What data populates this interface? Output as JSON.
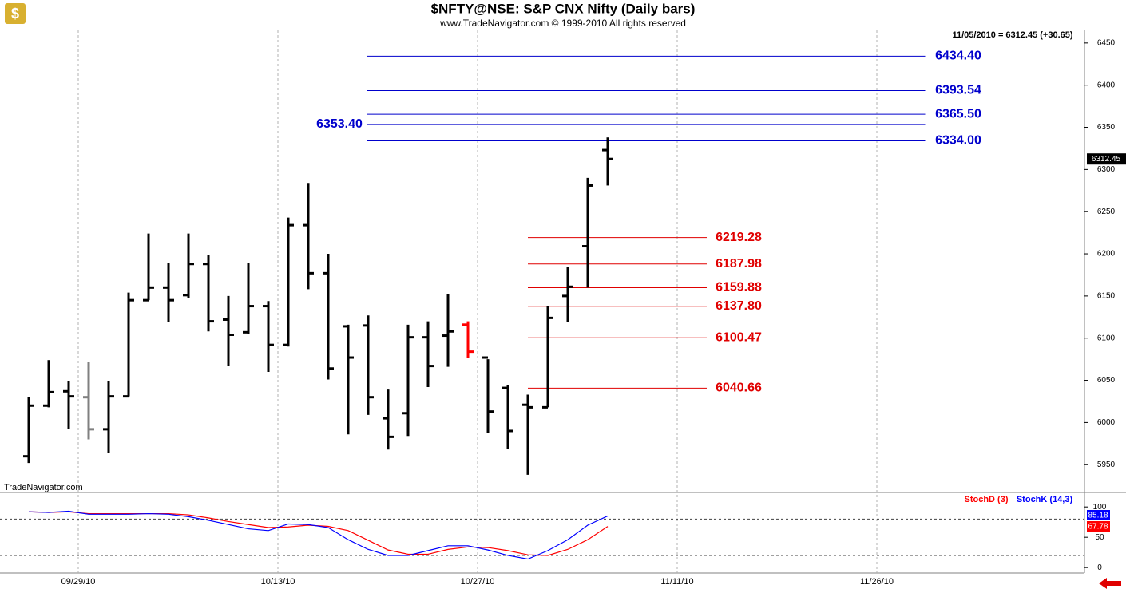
{
  "chart_data": [
    {
      "type": "ohlc",
      "title": "$NFTY@NSE:  S&P CNX Nifty  (Daily bars)",
      "subtitle": "www.TradeNavigator.com © 1999-2010 All rights reserved",
      "annotation": "11/05/2010 = 6312.45 (+30.65)",
      "watermark": "TradeNavigator.com",
      "x": [
        0,
        1,
        2,
        3,
        4,
        5,
        6,
        7,
        8,
        9,
        10,
        11,
        12,
        13,
        14,
        15,
        16,
        17,
        18,
        19,
        20,
        21,
        22,
        23,
        24,
        25,
        26,
        27,
        28,
        29
      ],
      "open": [
        5960,
        6020,
        6037,
        6030,
        5992,
        6031,
        6145,
        6160,
        6151,
        6188,
        6122,
        6107,
        6138,
        6092,
        6234,
        6177,
        6114,
        6115,
        6005,
        6011,
        6101,
        6103,
        6116,
        6077,
        6041,
        6021,
        6018,
        6150,
        6209,
        6323
      ],
      "high": [
        6030,
        6074,
        6049,
        6072,
        6049,
        6154,
        6224,
        6189,
        6224,
        6199,
        6150,
        6189,
        6144,
        6243,
        6284,
        6200,
        6116,
        6127,
        6039,
        6116,
        6120,
        6152,
        6120,
        6075,
        6044,
        6033,
        6138,
        6184,
        6290,
        6338
      ],
      "low": [
        5952,
        6018,
        5992,
        5980,
        5964,
        6031,
        6145,
        6119,
        6147,
        6108,
        6067,
        6105,
        6060,
        6090,
        6158,
        6051,
        5986,
        6009,
        5968,
        5984,
        6042,
        6066,
        6077,
        5988,
        5969,
        5938,
        6018,
        6119,
        6160,
        6281
      ],
      "close": [
        6020,
        6036,
        6031,
        5992,
        6031,
        6145,
        6160,
        6145,
        6188,
        6120,
        6104,
        6138,
        6092,
        6234,
        6177,
        6064,
        6077,
        6030,
        5983,
        6101,
        6067,
        6108,
        6084,
        6013,
        5990,
        6018,
        6124,
        6161,
        6281,
        6312.45
      ],
      "bar_colors": [
        "#000000",
        "#000000",
        "#000000",
        "#808080",
        "#000000",
        "#000000",
        "#000000",
        "#000000",
        "#000000",
        "#000000",
        "#000000",
        "#000000",
        "#000000",
        "#000000",
        "#000000",
        "#000000",
        "#000000",
        "#000000",
        "#000000",
        "#000000",
        "#000000",
        "#000000",
        "#ff0000",
        "#000000",
        "#000000",
        "#000000",
        "#000000",
        "#000000",
        "#000000",
        "#000000"
      ],
      "xlim": [
        -1.44,
        52.88
      ],
      "xticks": [
        {
          "value": 2.48,
          "label": "09/29/10"
        },
        {
          "value": 12.48,
          "label": "10/13/10"
        },
        {
          "value": 22.48,
          "label": "10/27/10"
        },
        {
          "value": 32.48,
          "label": "11/11/10"
        },
        {
          "value": 42.48,
          "label": "11/26/10"
        }
      ],
      "ylim": [
        5919,
        6465
      ],
      "yticks": [
        5950,
        6000,
        6050,
        6100,
        6150,
        6200,
        6250,
        6300,
        6350,
        6400,
        6450
      ],
      "level_groups": [
        {
          "color": "#0000cc",
          "levels": [
            {
              "value": 6434.4,
              "label": "6434.40"
            },
            {
              "value": 6393.54,
              "label": "6393.54"
            },
            {
              "value": 6365.5,
              "label": "6365.50"
            },
            {
              "value": 6353.4,
              "label": "6353.40",
              "label_side": "left"
            },
            {
              "value": 6334,
              "label": "6334.00"
            }
          ]
        },
        {
          "color": "#e00000",
          "levels": [
            {
              "value": 6219.28,
              "label": "6219.28"
            },
            {
              "value": 6187.98,
              "label": "6187.98"
            },
            {
              "value": 6159.88,
              "label": "6159.88"
            },
            {
              "value": 6137.8,
              "label": "6137.80"
            },
            {
              "value": 6100.47,
              "label": "6100.47"
            },
            {
              "value": 6040.66,
              "label": "6040.66"
            }
          ]
        }
      ]
    },
    {
      "type": "line",
      "x": [
        0,
        1,
        2,
        3,
        4,
        5,
        6,
        7,
        8,
        9,
        10,
        11,
        12,
        13,
        14,
        15,
        16,
        17,
        18,
        19,
        20,
        21,
        22,
        23,
        24,
        25,
        26,
        27,
        28,
        29
      ],
      "series": [
        {
          "name": "StochD (3)",
          "color": "#ff0000",
          "values": [
            92,
            91,
            92,
            89,
            89,
            89,
            89,
            89,
            87,
            82,
            76,
            71,
            66,
            67,
            70,
            68,
            61,
            45,
            29,
            22,
            22,
            30,
            34,
            33,
            28,
            21,
            20,
            30,
            46,
            67.78
          ]
        },
        {
          "name": "StochK (14,3)",
          "color": "#0000ff",
          "values": [
            92,
            91,
            93,
            88,
            88,
            88,
            89,
            88,
            84,
            78,
            71,
            64,
            61,
            72,
            71,
            66,
            46,
            30,
            20,
            20,
            28,
            36,
            36,
            29,
            20,
            14,
            28,
            46,
            70,
            85.18
          ]
        }
      ],
      "ylim": [
        -9,
        120
      ],
      "yticks": [
        0,
        50,
        100
      ],
      "levels": [
        20,
        80
      ]
    }
  ]
}
